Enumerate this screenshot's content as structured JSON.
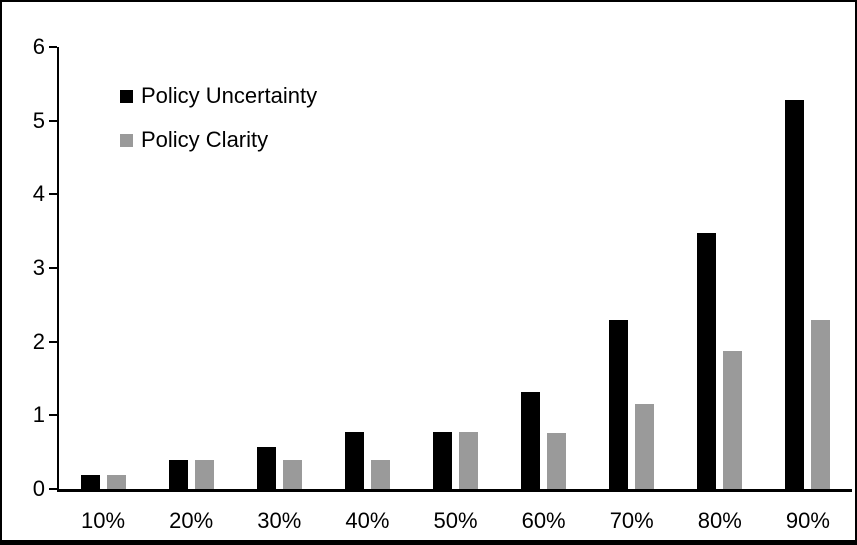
{
  "chart_data": {
    "type": "bar",
    "title": "",
    "xlabel": "",
    "ylabel": "",
    "categories": [
      "10%",
      "20%",
      "30%",
      "40%",
      "50%",
      "60%",
      "70%",
      "80%",
      "90%"
    ],
    "series": [
      {
        "name": "Policy Uncertainty",
        "color": "#000000",
        "values": [
          0.19,
          0.39,
          0.57,
          0.77,
          0.77,
          1.32,
          2.3,
          3.48,
          5.28
        ]
      },
      {
        "name": "Policy Clarity",
        "color": "#9A9A9A",
        "values": [
          0.19,
          0.39,
          0.39,
          0.39,
          0.77,
          0.76,
          1.15,
          1.88,
          2.29
        ]
      }
    ],
    "ylim": [
      0,
      6
    ],
    "yticks": [
      "6",
      "5",
      "4",
      "3",
      "2",
      "1",
      "0"
    ],
    "grid": false,
    "legend_position": "inside-top-left",
    "frame_border_color": "#000000",
    "background_color": "#ffffff"
  }
}
